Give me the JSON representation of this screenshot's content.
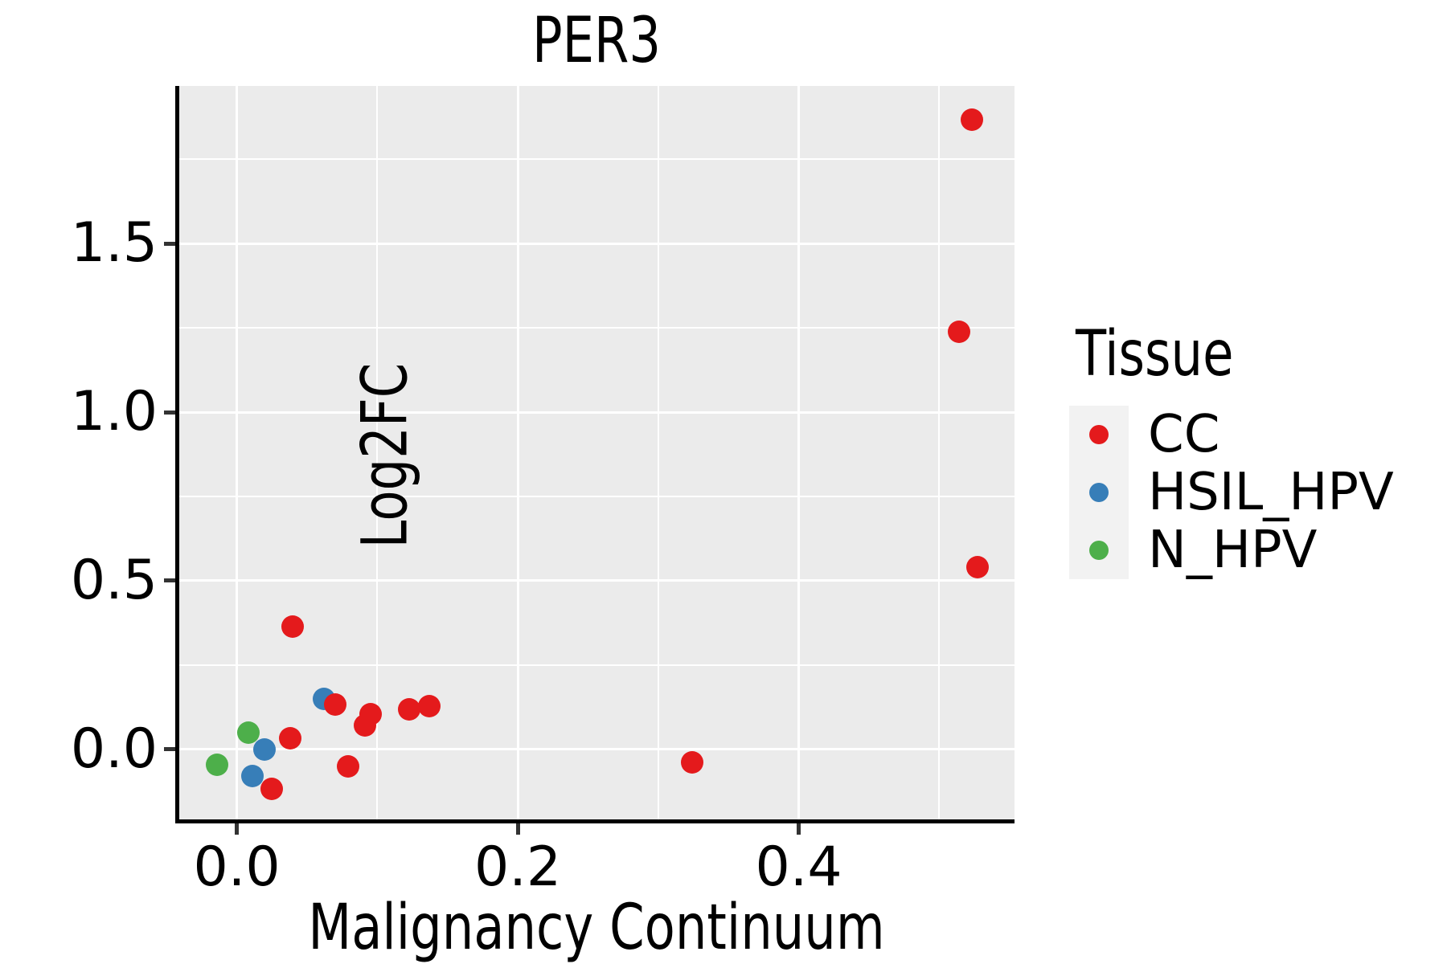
{
  "chart_data": {
    "type": "scatter",
    "title": "PER3",
    "xlabel": "Malignancy Continuum",
    "ylabel": "Log2FC",
    "xlim": [
      -0.0415,
      0.5536
    ],
    "ylim": [
      -0.2086,
      1.968
    ],
    "x_ticks": {
      "values": [
        0.0,
        0.2,
        0.4
      ],
      "labels": [
        "0.0",
        "0.2",
        "0.4"
      ]
    },
    "y_ticks": {
      "values": [
        0.0,
        0.5,
        1.0,
        1.5
      ],
      "labels": [
        "0.0",
        "0.5",
        "1.0",
        "1.5"
      ]
    },
    "x_minor_grid": [
      0.1,
      0.3,
      0.5
    ],
    "y_minor_grid": [
      0.25,
      0.75,
      1.25,
      1.75
    ],
    "grid": {
      "on": true,
      "major_color": "#FFFFFF",
      "minor_color": "#FFFFFF"
    },
    "panel_background": "#EBEBEB",
    "series": [
      {
        "name": "N_HPV",
        "color": "#4DAF4A",
        "points": [
          [
            0.008,
            0.049
          ],
          [
            -0.014,
            -0.046
          ]
        ]
      },
      {
        "name": "HSIL_HPV",
        "color": "#377EB8",
        "points": [
          [
            0.062,
            0.15
          ],
          [
            0.02,
            -0.001
          ],
          [
            0.011,
            -0.08
          ]
        ]
      },
      {
        "name": "CC",
        "color": "#E41A1C",
        "points": [
          [
            0.04,
            0.364
          ],
          [
            0.038,
            0.032
          ],
          [
            0.025,
            -0.119
          ],
          [
            0.091,
            0.07
          ],
          [
            0.095,
            0.103
          ],
          [
            0.07,
            0.133
          ],
          [
            0.123,
            0.117
          ],
          [
            0.137,
            0.128
          ],
          [
            0.079,
            -0.051
          ],
          [
            0.324,
            -0.04
          ],
          [
            0.527,
            0.54
          ],
          [
            0.514,
            1.238
          ],
          [
            0.523,
            1.868
          ]
        ]
      }
    ],
    "legend": {
      "title": "Tissue",
      "position": "right",
      "items": [
        {
          "label": "CC",
          "color": "#E41A1C"
        },
        {
          "label": "HSIL_HPV",
          "color": "#377EB8"
        },
        {
          "label": "N_HPV",
          "color": "#4DAF4A"
        }
      ]
    }
  }
}
